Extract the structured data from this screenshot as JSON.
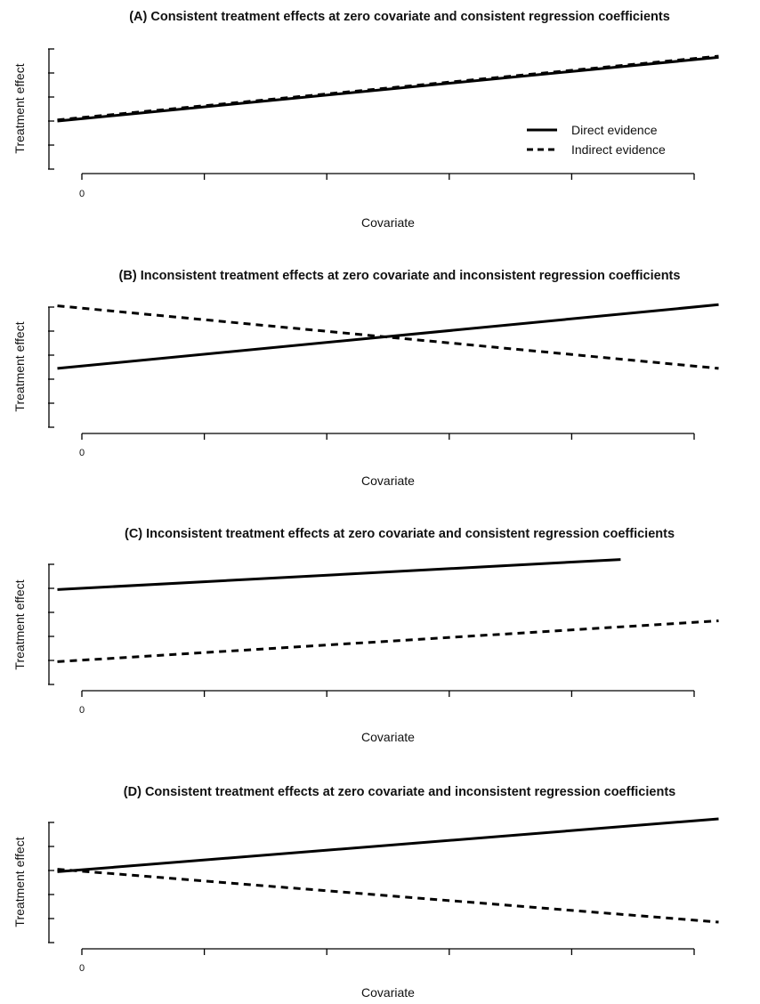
{
  "chart_data": [
    {
      "type": "line",
      "title": "(A) Consistent treatment effects at zero covariate and consistent regression coefficients",
      "xlabel": "Covariate",
      "ylabel": "Treatment effect",
      "x_tick_labels": [
        "0",
        "",
        "",
        "",
        "",
        ""
      ],
      "legend": {
        "position": "right",
        "entries": [
          "Direct evidence",
          "Indirect evidence"
        ]
      },
      "xlim": [
        0,
        5.2
      ],
      "ylim": [
        0,
        5
      ],
      "series": [
        {
          "name": "Direct evidence",
          "style": "solid",
          "x": [
            -0.2,
            5.2
          ],
          "y": [
            2.0,
            4.65
          ]
        },
        {
          "name": "Indirect evidence",
          "style": "dashed",
          "x": [
            -0.2,
            5.2
          ],
          "y": [
            2.05,
            4.7
          ]
        }
      ]
    },
    {
      "type": "line",
      "title": "(B) Inconsistent treatment effects at zero covariate and inconsistent regression coefficients",
      "xlabel": "Covariate",
      "ylabel": "Treatment effect",
      "x_tick_labels": [
        "0",
        "",
        "",
        "",
        "",
        ""
      ],
      "xlim": [
        0,
        5.2
      ],
      "ylim": [
        0,
        5
      ],
      "series": [
        {
          "name": "Direct evidence",
          "style": "solid",
          "x": [
            -0.2,
            5.2
          ],
          "y": [
            2.45,
            5.1
          ]
        },
        {
          "name": "Indirect evidence",
          "style": "dashed",
          "x": [
            -0.2,
            5.2
          ],
          "y": [
            5.05,
            2.45
          ]
        }
      ]
    },
    {
      "type": "line",
      "title": "(C) Inconsistent treatment effects at zero covariate and consistent regression coefficients",
      "xlabel": "Covariate",
      "ylabel": "Treatment effect",
      "x_tick_labels": [
        "0",
        "",
        "",
        "",
        "",
        ""
      ],
      "xlim": [
        0,
        5.2
      ],
      "ylim": [
        0,
        5
      ],
      "series": [
        {
          "name": "Direct evidence",
          "style": "solid",
          "x": [
            -0.2,
            4.4
          ],
          "y": [
            3.95,
            5.2
          ]
        },
        {
          "name": "Indirect evidence",
          "style": "dashed",
          "x": [
            -0.2,
            5.2
          ],
          "y": [
            0.95,
            2.65
          ]
        }
      ]
    },
    {
      "type": "line",
      "title": "(D) Consistent treatment effects at zero covariate and inconsistent regression coefficients",
      "xlabel": "Covariate",
      "ylabel": "Treatment effect",
      "x_tick_labels": [
        "0",
        "",
        "",
        "",
        "",
        ""
      ],
      "xlim": [
        0,
        5.2
      ],
      "ylim": [
        0,
        5
      ],
      "series": [
        {
          "name": "Direct evidence",
          "style": "solid",
          "x": [
            -0.2,
            5.2
          ],
          "y": [
            2.95,
            5.15
          ]
        },
        {
          "name": "Indirect evidence",
          "style": "dashed",
          "x": [
            -0.2,
            5.2
          ],
          "y": [
            3.05,
            0.85
          ]
        }
      ]
    }
  ]
}
